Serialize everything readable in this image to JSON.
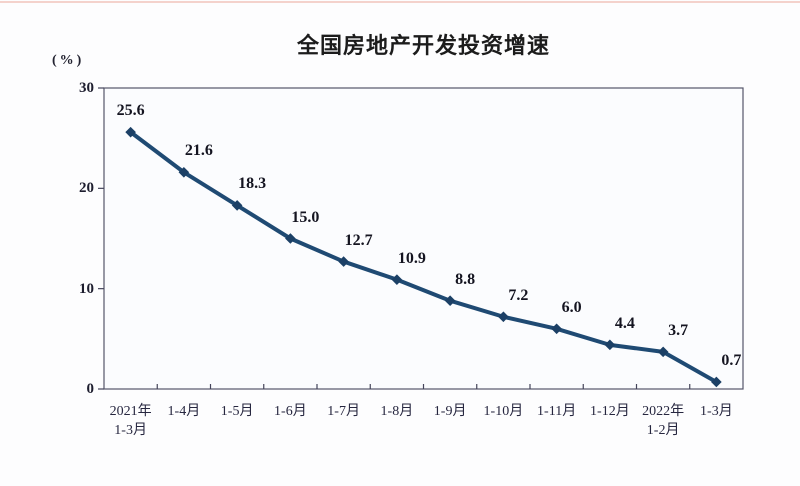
{
  "chart_data": {
    "type": "line",
    "title": "全国房地产开发投资增速",
    "unit_label": "(%)",
    "categories": [
      "2021年\n1-3月",
      "1-4月",
      "1-5月",
      "1-6月",
      "1-7月",
      "1-8月",
      "1-9月",
      "1-10月",
      "1-11月",
      "1-12月",
      "2022年\n1-2月",
      "1-3月"
    ],
    "values": [
      25.6,
      21.6,
      18.3,
      15.0,
      12.7,
      10.9,
      8.8,
      7.2,
      6.0,
      4.4,
      3.7,
      0.7
    ],
    "value_labels": [
      "25.6",
      "21.6",
      "18.3",
      "15.0",
      "12.7",
      "10.9",
      "8.8",
      "7.2",
      "6.0",
      "4.4",
      "3.7",
      "0.7"
    ],
    "y_ticks": [
      "0",
      "10",
      "20",
      "30"
    ],
    "y_tick_values": [
      0,
      10,
      20,
      30
    ],
    "ylim": [
      0,
      30
    ],
    "xlabel": "",
    "ylabel": "(%)",
    "grid": false,
    "legend_position": "none",
    "colors": {
      "line": "#1F4A73",
      "marker": "#1C4066",
      "plot_border": "#55556a",
      "plot_fill": "#fbfcfe",
      "tick": "#44445a"
    }
  }
}
